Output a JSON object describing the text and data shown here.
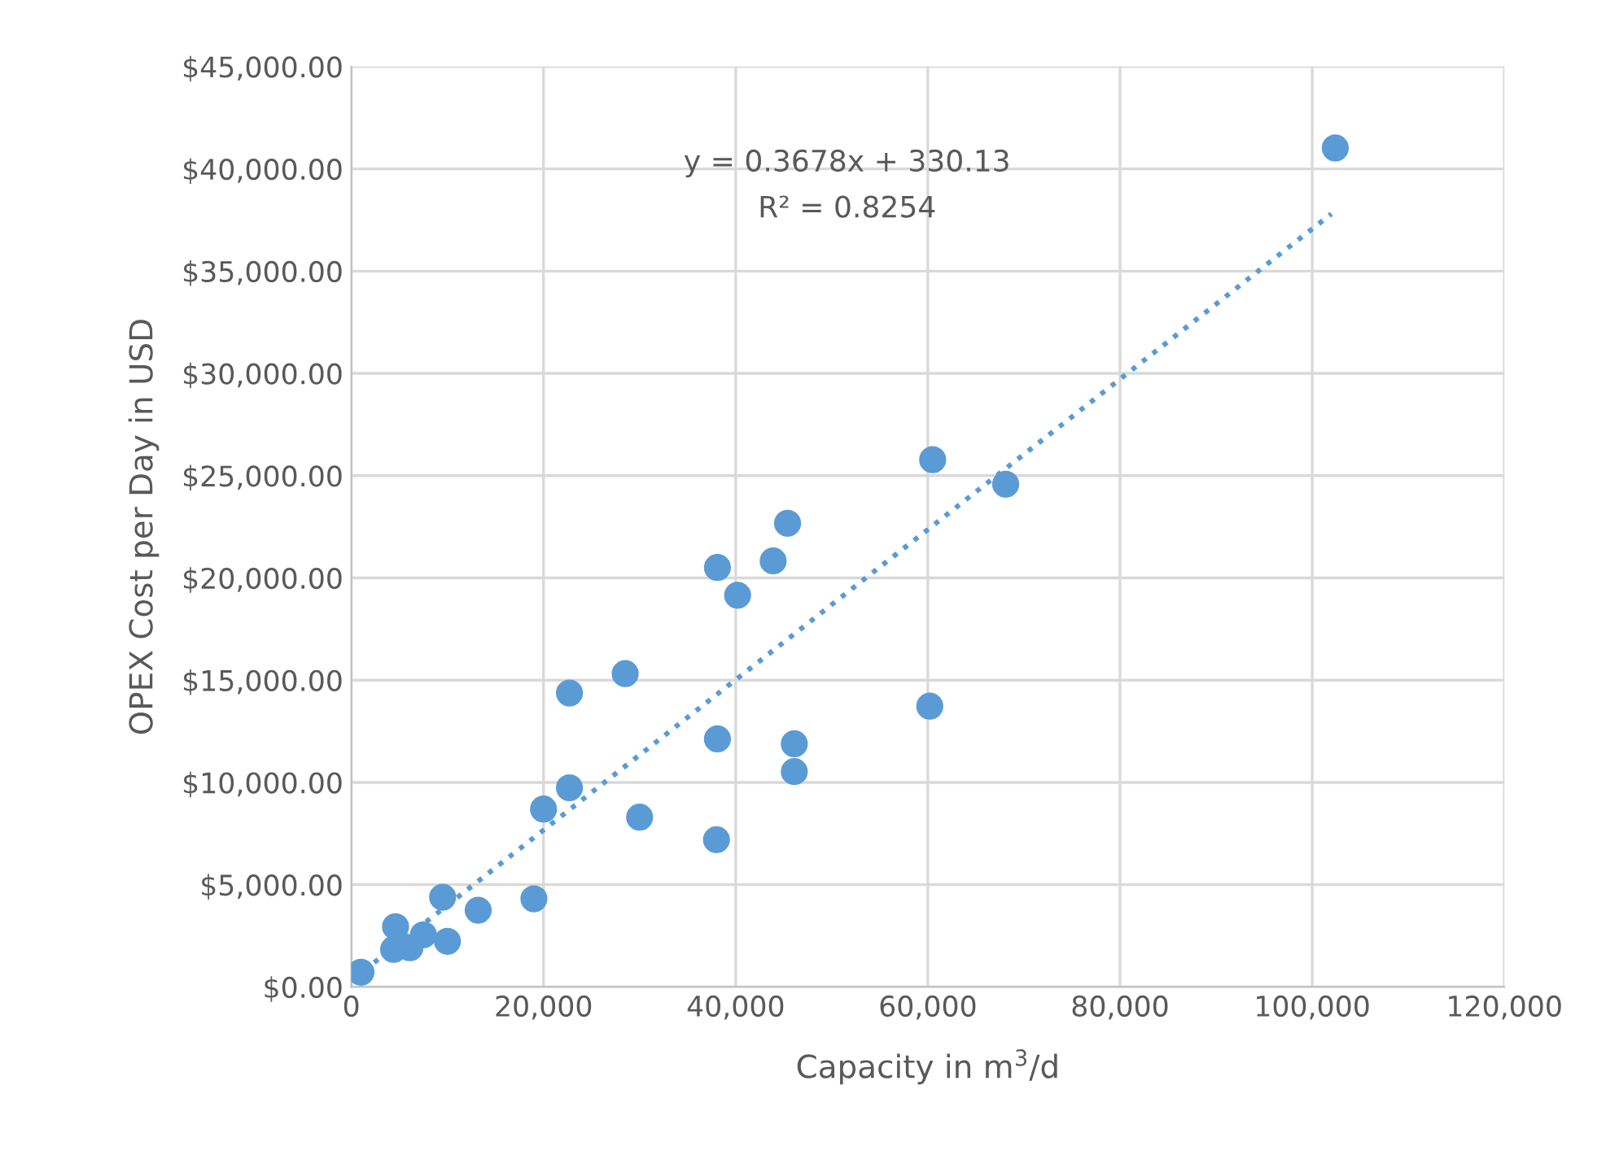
{
  "chart_data": {
    "type": "scatter",
    "xlabel": "Capacity in m$^{3}$/d",
    "ylabel": "OPEX Cost per Day in USD",
    "annotations": [
      "y = 0.3678x + 330.13",
      "R² = 0.8254"
    ],
    "series": [
      {
        "color": "#5b9bd5",
        "marker": "circle",
        "x": [
          1000,
          4600,
          4400,
          6100,
          7500,
          10000,
          9500,
          13200,
          19000,
          20000,
          22700,
          30000,
          22700,
          28500,
          38100,
          40200,
          43900,
          45400,
          60200,
          38100,
          46100,
          46100,
          38000,
          68100,
          60500,
          102400
        ],
        "values": [
          720,
          2950,
          1840,
          1920,
          2550,
          2230,
          4390,
          3750,
          4310,
          8700,
          9740,
          8300,
          14370,
          15320,
          20510,
          19150,
          20830,
          22670,
          13730,
          12130,
          11890,
          10530,
          7200,
          24580,
          25780,
          41020
        ]
      },
      {
        "type": "line",
        "color": "#5b9bd5",
        "line_style": "dotted",
        "marker": "none",
        "x": [
          1300,
          102000
        ],
        "values": [
          800,
          37800
        ]
      }
    ],
    "xlim": [
      0,
      120000
    ],
    "xticks": [
      {
        "value": 0,
        "label": "0"
      },
      {
        "value": 20000,
        "label": "20,000"
      },
      {
        "value": 40000,
        "label": "40,000"
      },
      {
        "value": 60000,
        "label": "60,000"
      },
      {
        "value": 80000,
        "label": "80,000"
      },
      {
        "value": 100000,
        "label": "100,000"
      },
      {
        "value": 120000,
        "label": "120,000"
      }
    ],
    "ylim": [
      0,
      45000
    ],
    "yticks": [
      {
        "value": 0,
        "label": "$0.00"
      },
      {
        "value": 5000,
        "label": "$5,000.00"
      },
      {
        "value": 10000,
        "label": "$10,000.00"
      },
      {
        "value": 15000,
        "label": "$15,000.00"
      },
      {
        "value": 20000,
        "label": "$20,000.00"
      },
      {
        "value": 25000,
        "label": "$25,000.00"
      },
      {
        "value": 30000,
        "label": "$30,000.00"
      },
      {
        "value": 35000,
        "label": "$35,000.00"
      },
      {
        "value": 40000,
        "label": "$40,000.00"
      },
      {
        "value": 45000,
        "label": "$45,000.00"
      }
    ],
    "grid": true
  }
}
